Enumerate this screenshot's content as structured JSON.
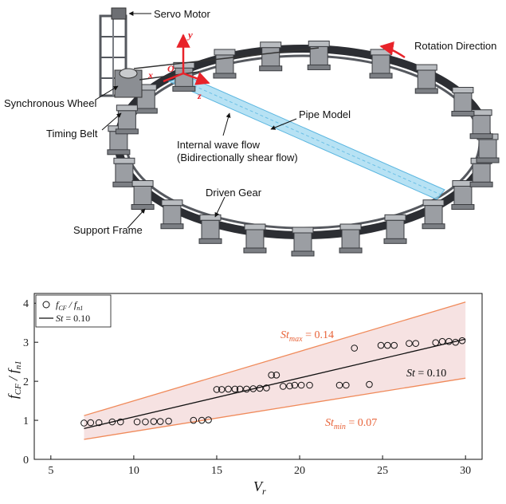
{
  "diagram": {
    "labels": {
      "servo_motor": "Servo Motor",
      "rotation_direction": "Rotation Direction",
      "synchronous_wheel": "Synchronous Wheel",
      "timing_belt": "Timing Belt",
      "pipe_model": "Pipe Model",
      "internal_wave_line1": "Internal wave flow",
      "internal_wave_line2": "(Bidirectionally shear flow)",
      "driven_gear": "Driven Gear",
      "support_frame": "Support Frame"
    },
    "axes": {
      "y": "y",
      "x": "x",
      "z": "z",
      "origin": "O"
    },
    "colors": {
      "axis_red": "#e8232a",
      "pipe_blue": "#9fd8f0",
      "frame_gray": "#6d6f73"
    }
  },
  "chart_data": {
    "type": "scatter",
    "xlabel": "V",
    "xlabel_sub": "r",
    "ylabel_main": "f",
    "ylabel_sub1": "CF",
    "ylabel_sub2": "n1",
    "xlim": [
      4,
      31
    ],
    "ylim": [
      0,
      4.25
    ],
    "xticks": [
      "5",
      "10",
      "15",
      "20",
      "25",
      "30"
    ],
    "yticks": [
      "0",
      "1",
      "2",
      "3",
      "4"
    ],
    "legend": {
      "position": "top-left",
      "marker_entry_main": "f",
      "marker_entry_sub1": "CF",
      "marker_entry_sub2": "n1",
      "line_entry_main": "St",
      "line_entry_value": " = 0.10"
    },
    "annotations": {
      "st_max_sub": "max",
      "st_max_value": " = 0.14",
      "st_mid_value": " = 0.10",
      "st_min_sub": "min",
      "st_min_value": " = 0.07",
      "symbol": "St"
    },
    "band_color": "#f6e2e2",
    "band_edge_color": "#f08a5a",
    "fit_line": {
      "x": [
        7.0,
        30.0
      ],
      "y": [
        0.79,
        3.08
      ]
    },
    "band_upper": {
      "x": [
        7.0,
        30.0
      ],
      "y": [
        1.12,
        4.03
      ]
    },
    "band_lower": {
      "x": [
        7.0,
        30.0
      ],
      "y": [
        0.51,
        2.08
      ]
    },
    "series": [
      {
        "name": "f_CF / f_n1",
        "x": [
          7.0,
          7.4,
          7.9,
          8.7,
          9.2,
          10.2,
          10.7,
          11.2,
          11.6,
          12.1,
          13.6,
          14.1,
          14.5,
          15.0,
          15.3,
          15.7,
          16.1,
          16.4,
          16.8,
          17.2,
          17.6,
          18.0,
          18.3,
          18.6,
          19.0,
          19.4,
          19.7,
          20.1,
          20.6,
          22.4,
          22.8,
          23.3,
          24.2,
          24.9,
          25.3,
          25.7,
          26.6,
          27.0,
          28.2,
          28.6,
          29.0,
          29.4,
          29.8
        ],
        "y": [
          0.93,
          0.94,
          0.94,
          0.96,
          0.96,
          0.96,
          0.96,
          0.97,
          0.97,
          0.98,
          1.0,
          1.0,
          1.01,
          1.79,
          1.79,
          1.8,
          1.8,
          1.8,
          1.8,
          1.81,
          1.82,
          1.83,
          2.16,
          2.16,
          1.87,
          1.88,
          1.9,
          1.9,
          1.9,
          1.9,
          1.9,
          2.85,
          1.92,
          2.92,
          2.92,
          2.92,
          2.97,
          2.97,
          2.99,
          3.02,
          3.02,
          3.0,
          3.04
        ]
      }
    ]
  }
}
